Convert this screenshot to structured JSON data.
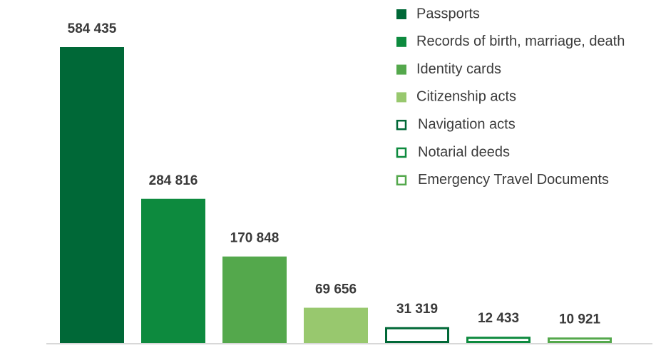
{
  "chart_data": {
    "type": "bar",
    "categories": [
      "Passports",
      "Records of birth, marriage, death",
      "Identity cards",
      "Citizenship acts",
      "Navigation acts",
      "Notarial deeds",
      "Emergency Travel Documents"
    ],
    "values": [
      584435,
      284816,
      170848,
      69656,
      31319,
      12433,
      10921
    ],
    "value_labels": [
      "584 435",
      "284 816",
      "170 848",
      "69 656",
      "31 319",
      "12 433",
      "10 921"
    ],
    "colors": [
      "#006837",
      "#0d8a3e",
      "#54a84c",
      "#98c86e",
      "#006837",
      "#0d8a3e",
      "#54a84c"
    ],
    "outline": [
      false,
      false,
      false,
      false,
      true,
      true,
      true
    ],
    "legend": "top-right"
  }
}
